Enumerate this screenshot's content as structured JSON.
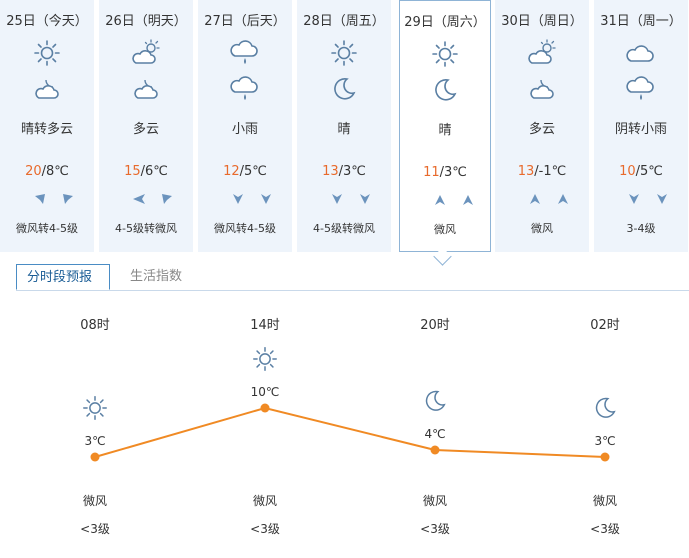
{
  "days": [
    {
      "date": "25日（今天）",
      "icon_day": "sunny-icon",
      "icon_night": "partly-cloudy-night-icon",
      "cond": "晴转多云",
      "hi": "20",
      "lo": "/8℃",
      "wind_icons": [
        "wind-arrow-icon",
        "wind-arrow-icon"
      ],
      "wind": "微风转4-5级"
    },
    {
      "date": "26日（明天）",
      "icon_day": "partly-cloudy-icon",
      "icon_night": "partly-cloudy-night-icon",
      "cond": "多云",
      "hi": "15",
      "lo": "/6℃",
      "wind_icons": [
        "wind-arrow-icon",
        "wind-arrow-icon"
      ],
      "wind": "4-5级转微风"
    },
    {
      "date": "27日（后天）",
      "icon_day": "light-rain-icon",
      "icon_night": "light-rain-icon",
      "cond": "小雨",
      "hi": "12",
      "lo": "/5℃",
      "wind_icons": [
        "wind-arrow-icon",
        "wind-arrow-icon"
      ],
      "wind": "微风转4-5级"
    },
    {
      "date": "28日（周五）",
      "icon_day": "sunny-icon",
      "icon_night": "moon-icon",
      "cond": "晴",
      "hi": "13",
      "lo": "/3℃",
      "wind_icons": [
        "wind-arrow-icon",
        "wind-arrow-icon"
      ],
      "wind": "4-5级转微风"
    },
    {
      "date": "29日（周六）",
      "icon_day": "sunny-icon",
      "icon_night": "moon-icon",
      "cond": "晴",
      "hi": "11",
      "lo": "/3℃",
      "wind_icons": [
        "wind-arrow-icon",
        "wind-arrow-icon"
      ],
      "wind": "微风"
    },
    {
      "date": "30日（周日）",
      "icon_day": "partly-cloudy-icon",
      "icon_night": "partly-cloudy-night-icon",
      "cond": "多云",
      "hi": "13",
      "lo": "/-1℃",
      "wind_icons": [
        "wind-arrow-icon",
        "wind-arrow-icon"
      ],
      "wind": "微风"
    },
    {
      "date": "31日（周一）",
      "icon_day": "cloudy-icon",
      "icon_night": "light-rain-icon",
      "cond": "阴转小雨",
      "hi": "10",
      "lo": "/5℃",
      "wind_icons": [
        "wind-arrow-icon",
        "wind-arrow-icon"
      ],
      "wind": "3-4级"
    }
  ],
  "selected_day": 4,
  "tabs": {
    "active": "分时段预报",
    "inactive": "生活指数"
  },
  "hourly": [
    {
      "time": "08时",
      "icon": "sunny-icon",
      "temp": "3℃",
      "temp_value": 3,
      "wind": "微风",
      "level": "<3级"
    },
    {
      "time": "14时",
      "icon": "sunny-icon",
      "temp": "10℃",
      "temp_value": 10,
      "wind": "微风",
      "level": "<3级"
    },
    {
      "time": "20时",
      "icon": "moon-icon",
      "temp": "4℃",
      "temp_value": 4,
      "wind": "微风",
      "level": "<3级"
    },
    {
      "time": "02时",
      "icon": "moon-icon",
      "temp": "3℃",
      "temp_value": 3,
      "wind": "微风",
      "level": "<3级"
    }
  ],
  "colors": {
    "accent": "#f08a24",
    "high_temp": "#e86a2c",
    "icon": "#5a7fa3",
    "tab_border": "#4a8cc4"
  }
}
